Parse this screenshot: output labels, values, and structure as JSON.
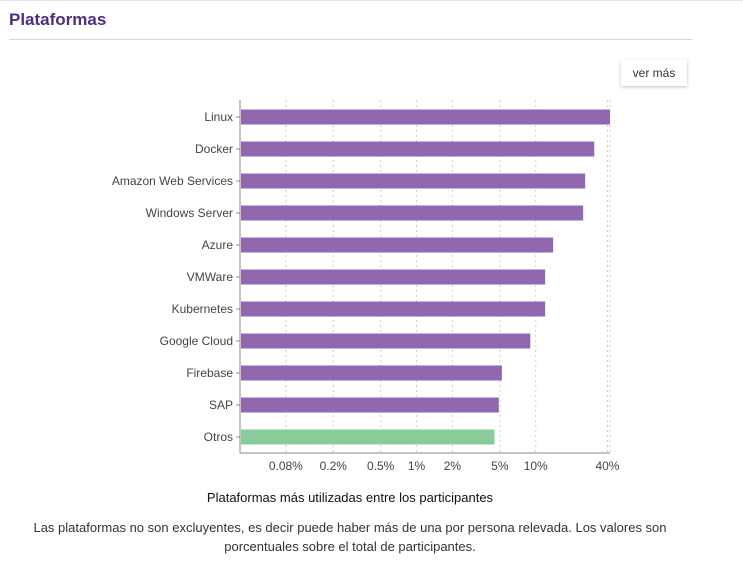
{
  "section": {
    "title": "Plataformas",
    "more_label": "ver más"
  },
  "colors": {
    "title": "#4f2d7f",
    "bar": "#9068b0",
    "bar_highlight": "#88cc9c",
    "grid": "#cccccc",
    "axis": "#888888"
  },
  "chart_data": {
    "type": "bar",
    "orientation": "horizontal",
    "title": "Plataformas más utilizadas entre los participantes",
    "x_scale": "log",
    "x_ticks": [
      {
        "value": 0.08,
        "label": "0.08%"
      },
      {
        "value": 0.2,
        "label": "0.2%"
      },
      {
        "value": 0.5,
        "label": "0.5%"
      },
      {
        "value": 1,
        "label": "1%"
      },
      {
        "value": 2,
        "label": "2%"
      },
      {
        "value": 5,
        "label": "5%"
      },
      {
        "value": 10,
        "label": "10%"
      },
      {
        "value": 40,
        "label": "40%"
      }
    ],
    "xlim": [
      0.033,
      42
    ],
    "grid": true,
    "categories": [
      "Linux",
      "Docker",
      "Amazon Web Services",
      "Windows Server",
      "Azure",
      "VMWare",
      "Kubernetes",
      "Google Cloud",
      "Firebase",
      "SAP",
      "Otros"
    ],
    "values": [
      42,
      31,
      26,
      25,
      14,
      12,
      12,
      9,
      5.2,
      4.9,
      4.5
    ],
    "highlight": [
      "Otros"
    ]
  },
  "footer": {
    "note": "Las plataformas no son excluyentes, es decir puede haber más de una por persona relevada. Los valores son porcentuales sobre el total de participantes."
  }
}
